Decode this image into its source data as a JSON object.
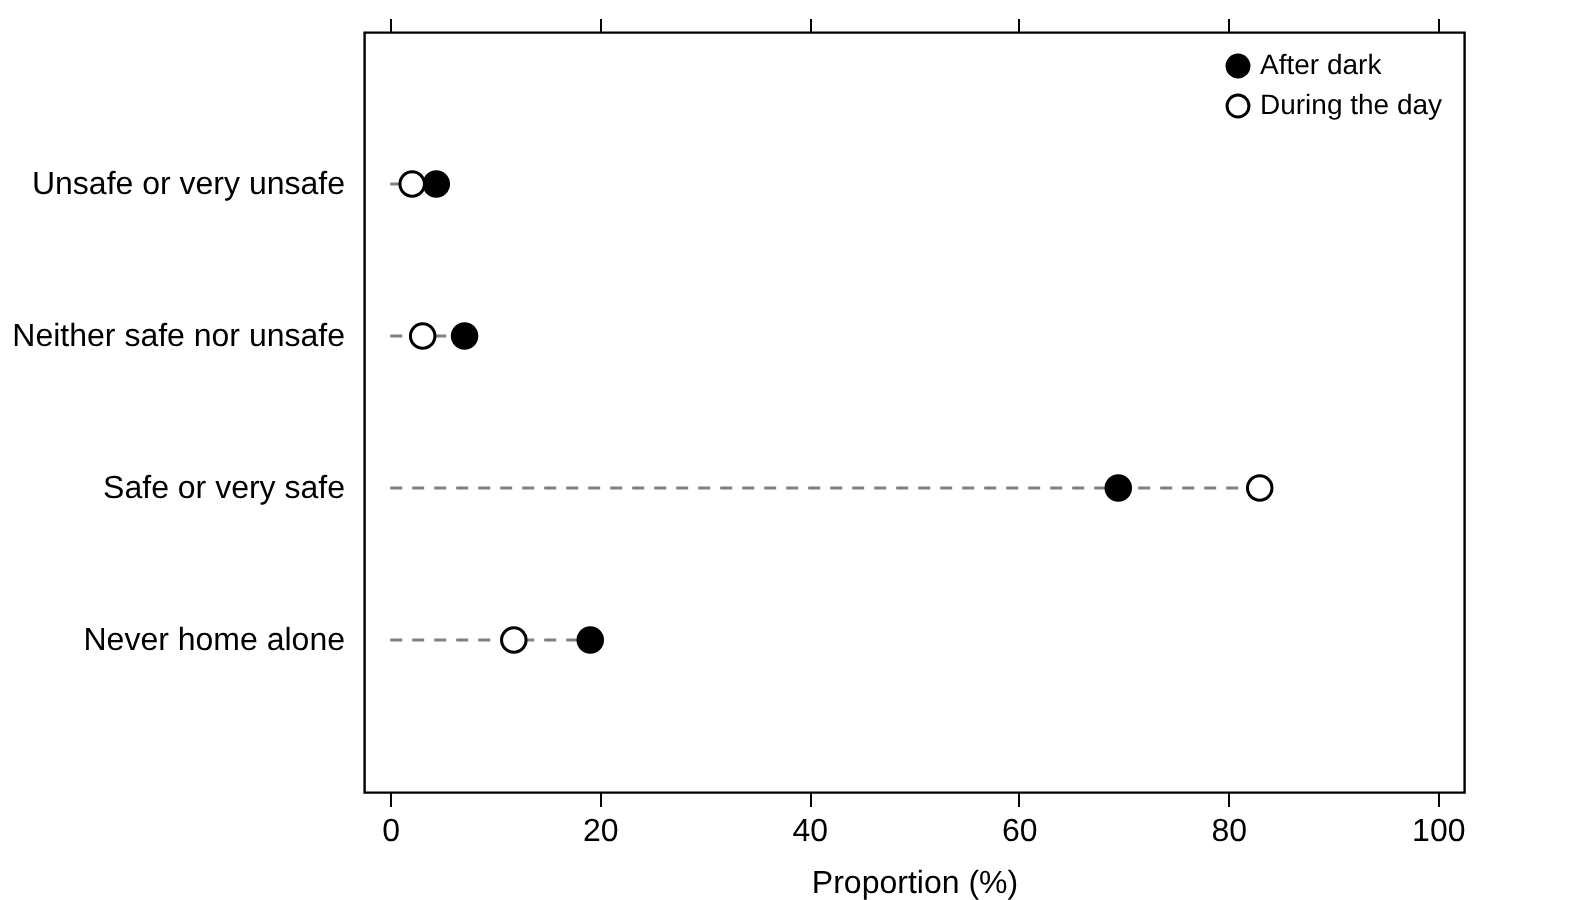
{
  "chart_data": {
    "type": "lollipop",
    "orientation": "horizontal",
    "xlabel": "Proportion (%)",
    "categories": [
      "Unsafe or very unsafe",
      "Neither safe nor unsafe",
      "Safe or very safe",
      "Never home alone"
    ],
    "series": [
      {
        "name": "After dark",
        "color": "#000000",
        "values": [
          4.4,
          7.1,
          69.5,
          19.1
        ]
      },
      {
        "name": "During the day",
        "color": "#ffffff",
        "values": [
          2.1,
          3.1,
          83.0,
          11.8
        ]
      }
    ],
    "xlim": [
      -2.5,
      102.5
    ],
    "xticks": [
      0,
      20,
      40,
      60,
      80,
      100
    ],
    "marker": "circle",
    "line_style": "dashed",
    "grid": false,
    "legend": "top right"
  }
}
